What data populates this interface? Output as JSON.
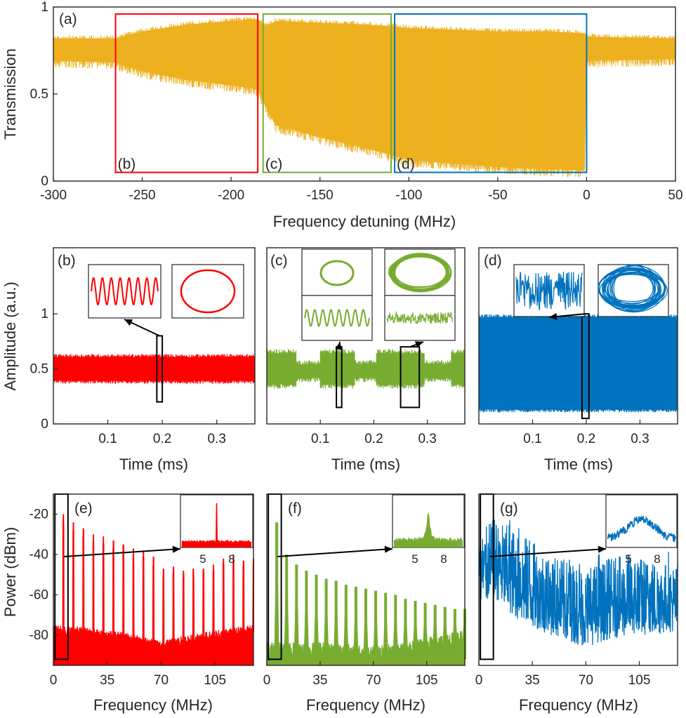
{
  "colors": {
    "a": "#EDB120",
    "red": "#FF0000",
    "green": "#77AC30",
    "blue": "#0072BD",
    "axis": "#262626",
    "arrow": "#000000"
  },
  "chart_data": [
    {
      "id": "a",
      "type": "area",
      "panel_label": "(a)",
      "xlabel": "Frequency detuning (MHz)",
      "ylabel": "Transmission",
      "xlim": [
        -300,
        50
      ],
      "ylim": [
        0,
        1
      ],
      "xticks": [
        -300,
        -250,
        -200,
        -150,
        -100,
        -50,
        0,
        50
      ],
      "yticks": [
        0,
        0.5,
        1
      ],
      "ytick_labels": [
        "0",
        "0.5",
        "1"
      ],
      "envelope": {
        "x": [
          -300,
          -265,
          -250,
          -225,
          -200,
          -187,
          -185,
          -180,
          -175,
          -150,
          -125,
          -110,
          -100,
          -75,
          -50,
          -25,
          -1,
          0,
          50
        ],
        "upper": [
          0.82,
          0.82,
          0.86,
          0.9,
          0.92,
          0.93,
          0.93,
          0.89,
          0.92,
          0.91,
          0.9,
          0.89,
          0.88,
          0.87,
          0.86,
          0.86,
          0.85,
          0.83,
          0.82
        ],
        "lower": [
          0.69,
          0.68,
          0.63,
          0.58,
          0.55,
          0.53,
          0.52,
          0.42,
          0.32,
          0.25,
          0.19,
          0.15,
          0.12,
          0.1,
          0.08,
          0.07,
          0.06,
          0.69,
          0.7
        ]
      },
      "regions": [
        {
          "label": "(b)",
          "x": [
            -265,
            -185
          ],
          "y": [
            0.05,
            0.96
          ],
          "color": "red"
        },
        {
          "label": "(c)",
          "x": [
            -182,
            -110
          ],
          "y": [
            0.05,
            0.96
          ],
          "color": "green"
        },
        {
          "label": "(d)",
          "x": [
            -108,
            0
          ],
          "y": [
            0.05,
            0.96
          ],
          "color": "blue"
        }
      ]
    },
    {
      "id": "b",
      "type": "area",
      "panel_label": "(b)",
      "color": "red",
      "xlabel": "Time (ms)",
      "ylabel": "Amplitude (a.u.)",
      "xlim": [
        0,
        0.37
      ],
      "ylim": [
        0,
        1.6
      ],
      "xticks": [
        0.1,
        0.2,
        0.3
      ],
      "xtick_labels": [
        "0.1",
        "0.2",
        "0.3"
      ],
      "yticks": [
        0,
        0.5,
        1
      ],
      "ytick_labels": [
        "0",
        "0.5",
        "1"
      ],
      "band": {
        "x": [
          0,
          0.37
        ],
        "upper": [
          0.62,
          0.62
        ],
        "lower": [
          0.38,
          0.38
        ]
      },
      "zoom_box": {
        "x": [
          0.19,
          0.2
        ],
        "y": [
          0.2,
          0.8
        ]
      }
    },
    {
      "id": "c",
      "type": "area",
      "panel_label": "(c)",
      "color": "green",
      "xlabel": "Time (ms)",
      "xlim": [
        0,
        0.37
      ],
      "ylim": [
        0,
        1.6
      ],
      "xticks": [
        0.1,
        0.2,
        0.3
      ],
      "xtick_labels": [
        "0.1",
        "0.2",
        "0.3"
      ],
      "segments": [
        {
          "x": [
            0.0,
            0.055
          ],
          "upper": 0.66,
          "lower": 0.34
        },
        {
          "x": [
            0.055,
            0.1
          ],
          "upper": 0.56,
          "lower": 0.4
        },
        {
          "x": [
            0.1,
            0.165
          ],
          "upper": 0.66,
          "lower": 0.34
        },
        {
          "x": [
            0.165,
            0.205
          ],
          "upper": 0.56,
          "lower": 0.4
        },
        {
          "x": [
            0.205,
            0.295
          ],
          "upper": 0.66,
          "lower": 0.34
        },
        {
          "x": [
            0.295,
            0.345
          ],
          "upper": 0.56,
          "lower": 0.4
        },
        {
          "x": [
            0.345,
            0.37
          ],
          "upper": 0.66,
          "lower": 0.34
        }
      ],
      "zoom_boxes": [
        {
          "x": [
            0.13,
            0.14
          ],
          "y": [
            0.15,
            0.7
          ]
        },
        {
          "x": [
            0.25,
            0.285
          ],
          "y": [
            0.15,
            0.7
          ]
        }
      ]
    },
    {
      "id": "d",
      "type": "area",
      "panel_label": "(d)",
      "color": "blue",
      "xlabel": "Time (ms)",
      "xlim": [
        0,
        0.37
      ],
      "ylim": [
        0,
        1.6
      ],
      "xticks": [
        0.1,
        0.2,
        0.3
      ],
      "xtick_labels": [
        "0.1",
        "0.2",
        "0.3"
      ],
      "band": {
        "x": [
          0,
          0.37
        ],
        "upper": [
          0.98,
          0.98
        ],
        "lower": [
          0.12,
          0.12
        ]
      },
      "zoom_box": {
        "x": [
          0.192,
          0.205
        ],
        "y": [
          0.05,
          1.0
        ]
      }
    },
    {
      "id": "e",
      "type": "line",
      "panel_label": "(e)",
      "color": "red",
      "xlabel": "Frequency (MHz)",
      "ylabel": "Power (dBm)",
      "xlim": [
        0,
        130
      ],
      "ylim": [
        -95,
        -10
      ],
      "xticks": [
        0,
        35,
        70,
        105
      ],
      "yticks": [
        -80,
        -60,
        -40,
        -20
      ],
      "floor": {
        "x": [
          0,
          20,
          40,
          55,
          70,
          80,
          95,
          110,
          120,
          130
        ],
        "y": [
          -78,
          -79,
          -81,
          -83,
          -86,
          -84,
          -82,
          -80,
          -79,
          -78
        ]
      },
      "peaks": {
        "x": [
          6.5,
          13,
          19.5,
          26,
          32.5,
          39,
          45.5,
          52,
          58.5,
          65,
          71.5,
          78,
          84.5,
          91,
          97.5,
          104,
          110.5,
          117,
          123.5,
          130
        ],
        "y": [
          -20,
          -24,
          -27,
          -30,
          -31,
          -33,
          -35,
          -37,
          -38,
          -41,
          -47,
          -46,
          -48,
          -47,
          -47,
          -45,
          -42,
          -40,
          -43,
          -42
        ]
      },
      "zoom_box": {
        "x": [
          1,
          9.5
        ],
        "y": [
          -92,
          -10
        ]
      },
      "inset_xticks": [
        "5",
        "8"
      ]
    },
    {
      "id": "f",
      "type": "line",
      "panel_label": "(f)",
      "color": "green",
      "xlabel": "Frequency (MHz)",
      "xlim": [
        0,
        130
      ],
      "ylim": [
        -95,
        -10
      ],
      "xticks": [
        0,
        35,
        70,
        105
      ],
      "floor": {
        "x": [
          0,
          40,
          70,
          100,
          130
        ],
        "y": [
          -88,
          -88,
          -90,
          -86,
          -82
        ]
      },
      "peaks": {
        "x": [
          6.5,
          13,
          19.5,
          26,
          32.5,
          39,
          45.5,
          52,
          58.5,
          65,
          71.5,
          78,
          84.5,
          91,
          97.5,
          104,
          110.5,
          117,
          123.5,
          130
        ],
        "y": [
          -24,
          -40,
          -45,
          -48,
          -50,
          -52,
          -53,
          -55,
          -56,
          -57,
          -58,
          -59,
          -60,
          -62,
          -63,
          -64,
          -65,
          -66,
          -67,
          -67
        ]
      },
      "zoom_box": {
        "x": [
          1,
          9.5
        ],
        "y": [
          -92,
          -10
        ]
      },
      "inset_xticks": [
        "5",
        "8"
      ]
    },
    {
      "id": "g",
      "type": "line",
      "panel_label": "(g)",
      "color": "blue",
      "xlabel": "Frequency (MHz)",
      "xlim": [
        0,
        130
      ],
      "ylim": [
        -95,
        -10
      ],
      "xticks": [
        0,
        35,
        70,
        105
      ],
      "upper": {
        "x": [
          0,
          10,
          25,
          40,
          55,
          70,
          85,
          100,
          115,
          130
        ],
        "y": [
          -30,
          -22,
          -28,
          -36,
          -42,
          -46,
          -42,
          -40,
          -42,
          -45
        ]
      },
      "lower": {
        "x": [
          0,
          10,
          25,
          40,
          55,
          70,
          85,
          100,
          115,
          130
        ],
        "y": [
          -65,
          -62,
          -72,
          -78,
          -82,
          -86,
          -82,
          -80,
          -80,
          -78
        ]
      },
      "zoom_box": {
        "x": [
          1,
          9.5
        ],
        "y": [
          -92,
          -10
        ]
      },
      "inset_xticks": [
        "5",
        "8"
      ]
    }
  ]
}
